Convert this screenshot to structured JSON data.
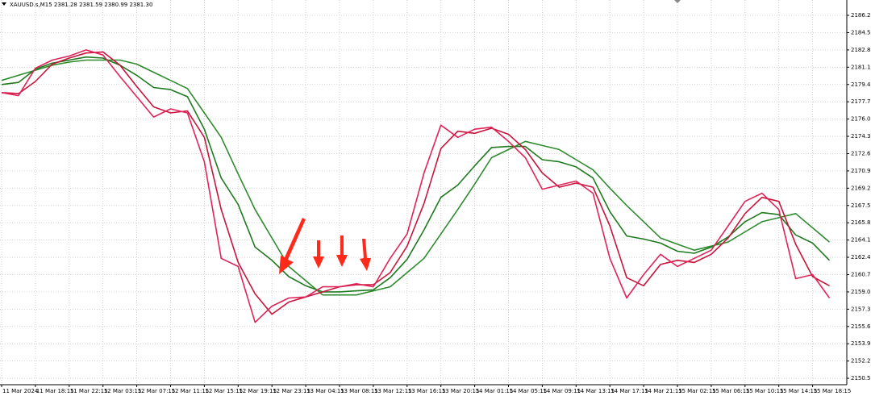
{
  "chart_data": {
    "type": "line",
    "title": "XAUUSD.s,M15  2381.28 2381.59 2380.99 2381.30",
    "categories": [
      "11 Mar 2024",
      null,
      "11 Mar 18:15",
      null,
      "11 Mar 22:15",
      null,
      "12 Mar 03:15",
      null,
      "12 Mar 07:15",
      null,
      "12 Mar 11:15",
      null,
      "12 Mar 15:15",
      null,
      "12 Mar 19:15",
      null,
      "12 Mar 23:15",
      null,
      "13 Mar 04:15",
      null,
      "13 Mar 08:15",
      null,
      "13 Mar 12:15",
      null,
      "13 Mar 16:15",
      null,
      "13 Mar 20:15",
      null,
      "14 Mar 01:15",
      null,
      "14 Mar 05:15",
      null,
      "14 Mar 09:15",
      null,
      "14 Mar 13:15",
      null,
      "14 Mar 17:15",
      null,
      "14 Mar 21:15",
      null,
      "15 Mar 02:15",
      null,
      "15 Mar 06:15",
      null,
      "15 Mar 10:15",
      null,
      "15 Mar 14:15",
      null,
      "15 Mar 18:15",
      null
    ],
    "series": [
      {
        "color": "#2e8b2e",
        "values": [
          2179.8,
          2180.3,
          2180.8,
          2181.3,
          2181.6,
          2181.8,
          2181.8,
          2181.8,
          2181.4,
          2180.6,
          2179.8,
          2179.0,
          2176.6,
          2174.2,
          2170.6,
          2167.1,
          2164.3,
          2161.5,
          2160.1,
          2158.7,
          2158.7,
          2158.7,
          2159.1,
          2159.5,
          2160.9,
          2162.3,
          2164.7,
          2167.1,
          2169.6,
          2172.2,
          2173.0,
          2173.8,
          2173.4,
          2173.0,
          2172.0,
          2171.0,
          2169.2,
          2167.5,
          2165.9,
          2164.3,
          2163.7,
          2163.1,
          2163.5,
          2163.9,
          2164.9,
          2165.9,
          2166.3,
          2166.7,
          2165.3,
          2163.9
        ]
      },
      {
        "color": "#1f7a1f",
        "values": [
          2179.4,
          2179.6,
          2180.9,
          2181.5,
          2181.8,
          2182.1,
          2182.0,
          2181.3,
          2180.3,
          2179.1,
          2178.9,
          2178.2,
          2175.0,
          2170.2,
          2167.6,
          2163.4,
          2162.1,
          2160.5,
          2159.6,
          2159.0,
          2159.0,
          2159.1,
          2159.2,
          2160.4,
          2162.2,
          2165.1,
          2168.3,
          2169.5,
          2171.4,
          2173.2,
          2173.3,
          2173.3,
          2172.0,
          2171.8,
          2171.3,
          2170.2,
          2166.9,
          2164.5,
          2164.2,
          2163.8,
          2163.0,
          2162.8,
          2163.4,
          2164.4,
          2165.9,
          2166.8,
          2166.6,
          2164.6,
          2163.8,
          2162.1
        ]
      },
      {
        "color": "#c8143c",
        "values": [
          2178.6,
          2178.5,
          2179.7,
          2181.4,
          2182.0,
          2182.5,
          2182.6,
          2181.3,
          2179.2,
          2177.2,
          2176.6,
          2176.8,
          2174.2,
          2167.1,
          2161.9,
          2158.8,
          2156.8,
          2158.0,
          2158.5,
          2159.0,
          2159.5,
          2159.7,
          2159.7,
          2160.9,
          2163.5,
          2167.7,
          2173.1,
          2174.8,
          2174.6,
          2175.1,
          2174.5,
          2173.0,
          2170.7,
          2169.3,
          2169.7,
          2169.3,
          2165.5,
          2160.4,
          2159.6,
          2161.7,
          2162.1,
          2161.9,
          2162.7,
          2164.3,
          2166.7,
          2168.3,
          2167.9,
          2163.7,
          2160.5,
          2159.6
        ]
      },
      {
        "color": "#e0245a",
        "values": [
          2178.6,
          2178.3,
          2181.0,
          2181.8,
          2182.2,
          2182.8,
          2182.3,
          2180.2,
          2178.2,
          2176.2,
          2177.0,
          2176.6,
          2171.8,
          2162.3,
          2161.5,
          2156.0,
          2157.6,
          2158.4,
          2158.5,
          2159.5,
          2159.5,
          2159.8,
          2159.5,
          2162.3,
          2164.7,
          2170.7,
          2175.4,
          2174.2,
          2175.0,
          2175.2,
          2173.8,
          2172.2,
          2169.1,
          2169.5,
          2169.9,
          2168.7,
          2162.3,
          2158.4,
          2160.7,
          2162.7,
          2161.5,
          2162.3,
          2163.1,
          2165.5,
          2167.9,
          2168.7,
          2167.1,
          2160.3,
          2160.7,
          2158.4
        ]
      }
    ],
    "ylim": [
      2149.87,
      2187.71
    ],
    "yticks": [
      {
        "value": 2150.5,
        "label": "2150.50"
      },
      {
        "value": 2152.2,
        "label": "2152.20"
      },
      {
        "value": 2153.9,
        "label": "2153.90"
      },
      {
        "value": 2155.6,
        "label": "2155.60"
      },
      {
        "value": 2157.3,
        "label": "2157.30"
      },
      {
        "value": 2159,
        "label": "2159.00"
      },
      {
        "value": 2160.7,
        "label": "2160.70"
      },
      {
        "value": 2162.4,
        "label": "2162.40"
      },
      {
        "value": 2164.1,
        "label": "2164.10"
      },
      {
        "value": 2165.8,
        "label": "2165.80"
      },
      {
        "value": 2167.5,
        "label": "2167.50"
      },
      {
        "value": 2169.2,
        "label": "2169.20"
      },
      {
        "value": 2170.9,
        "label": "2170.90"
      },
      {
        "value": 2172.6,
        "label": "2172.60"
      },
      {
        "value": 2174.3,
        "label": "2174.30"
      },
      {
        "value": 2176,
        "label": "2176.00"
      },
      {
        "value": 2177.7,
        "label": "2177.70"
      },
      {
        "value": 2179.4,
        "label": "2179.40"
      },
      {
        "value": 2181.1,
        "label": "2181.10"
      },
      {
        "value": 2182.8,
        "label": "2182.80"
      },
      {
        "value": 2184.5,
        "label": "2184.50"
      },
      {
        "value": 2186.2,
        "label": "2186.20"
      }
    ],
    "grid": true
  }
}
